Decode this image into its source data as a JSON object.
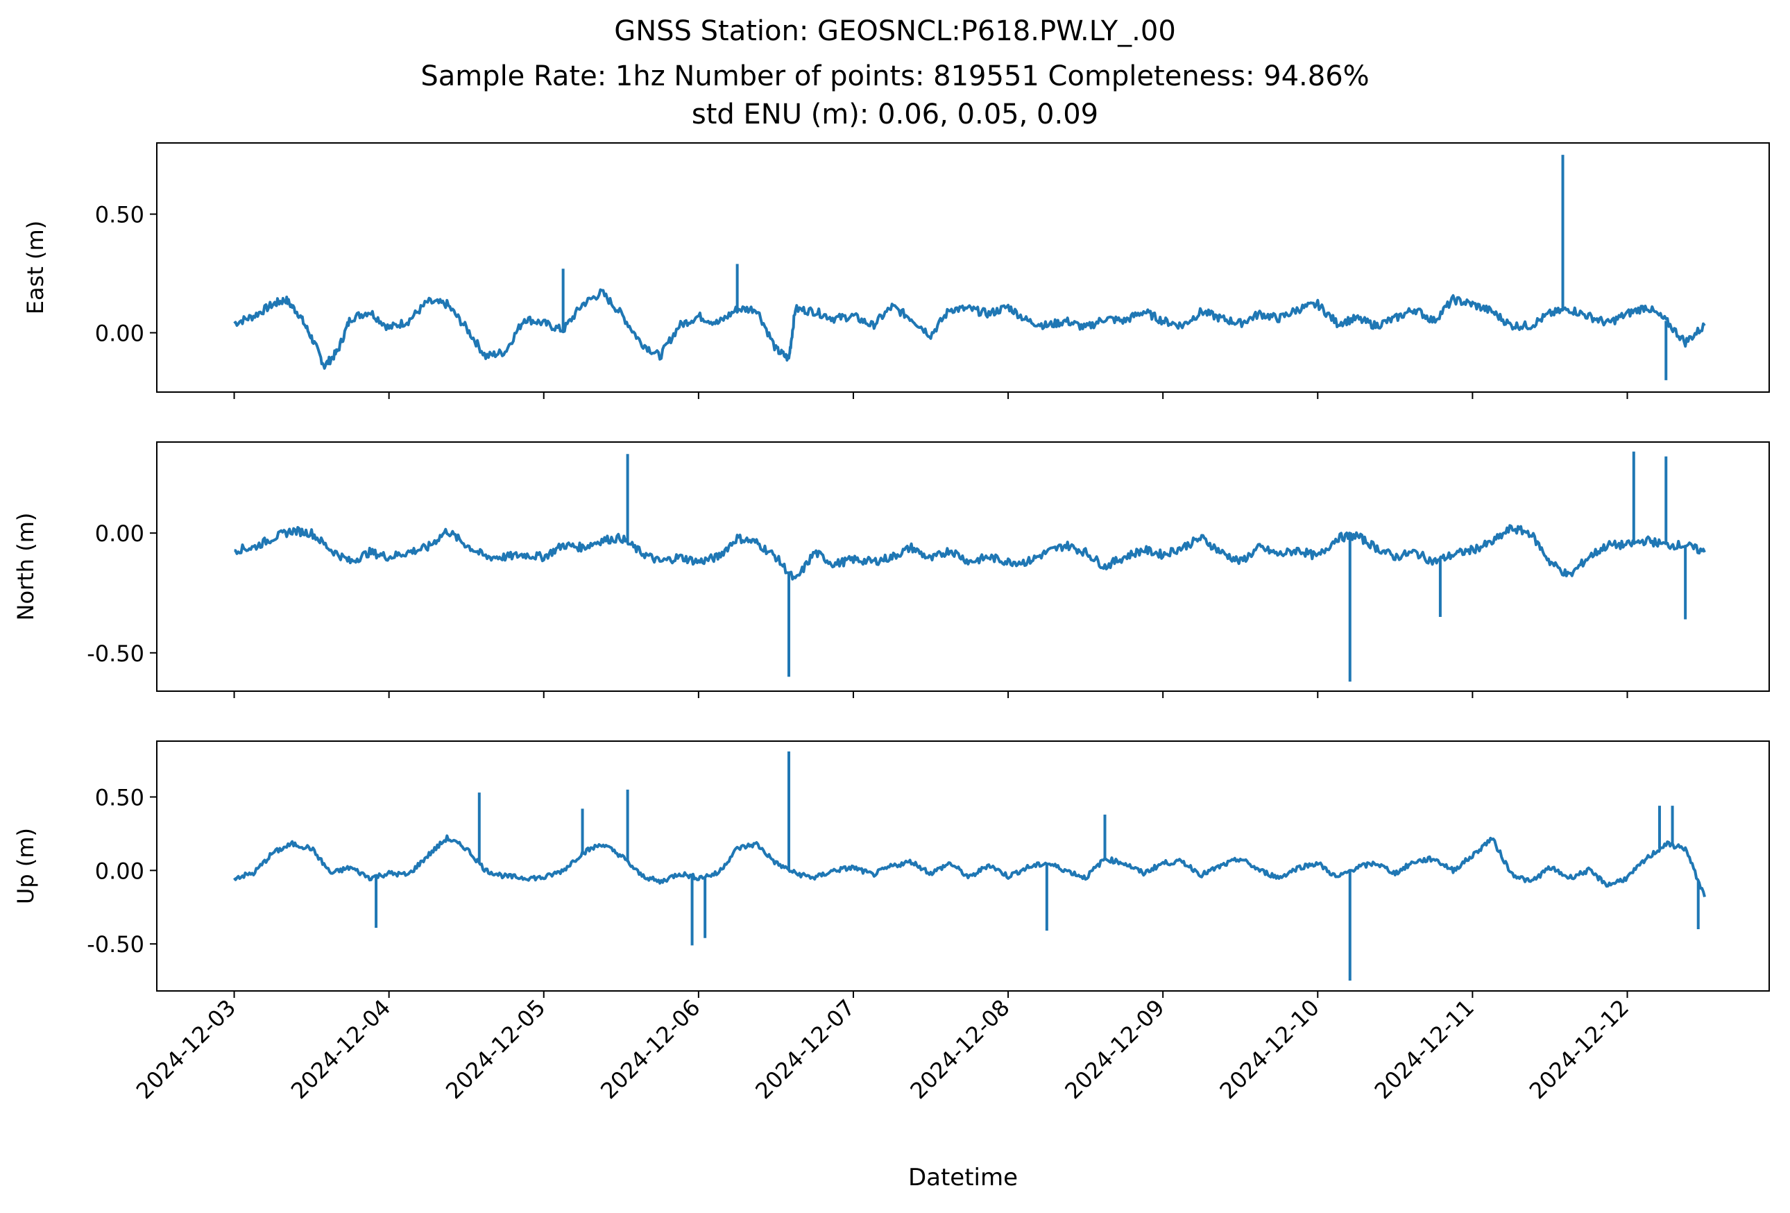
{
  "title_lines": [
    "GNSS Station: GEOSNCL:P618.PW.LY_.00",
    "Sample Rate: 1hz   Number of points: 819551    Completeness:  94.86%",
    "std ENU (m):  0.06, 0.05, 0.09"
  ],
  "xlabel": "Datetime",
  "line_color": "#1f77b4",
  "chart_data": [
    {
      "type": "line",
      "ylabel": "East (m)",
      "x_ticks": [
        "2024-12-03",
        "2024-12-04",
        "2024-12-05",
        "2024-12-06",
        "2024-12-07",
        "2024-12-08",
        "2024-12-09",
        "2024-12-10",
        "2024-12-11",
        "2024-12-12"
      ],
      "show_x_tick_labels": false,
      "y_ticks": [
        0.5,
        0.0
      ],
      "y_tick_labels": [
        "0.50",
        "0.00"
      ],
      "ylim": [
        -0.25,
        0.8
      ],
      "xlim": [
        "2024-12-02T12:00",
        "2024-12-12T22:00"
      ],
      "series": [
        {
          "x": [
            "2024-12-03T00:00",
            "2024-12-03T03:00",
            "2024-12-03T06:00",
            "2024-12-03T08:00",
            "2024-12-03T10:00",
            "2024-12-03T12:00",
            "2024-12-03T14:00",
            "2024-12-03T16:00",
            "2024-12-03T18:00",
            "2024-12-03T21:00",
            "2024-12-04T00:00",
            "2024-12-04T03:00",
            "2024-12-04T06:00",
            "2024-12-04T09:00",
            "2024-12-04T12:00",
            "2024-12-04T15:00",
            "2024-12-04T18:00",
            "2024-12-04T21:00",
            "2024-12-05T00:00",
            "2024-12-05T03:00",
            "2024-12-05T06:00",
            "2024-12-05T09:00",
            "2024-12-05T12:00",
            "2024-12-05T15:00",
            "2024-12-05T18:00",
            "2024-12-05T21:00",
            "2024-12-06T00:00",
            "2024-12-06T03:00",
            "2024-12-06T06:00",
            "2024-12-06T09:00",
            "2024-12-06T12:00",
            "2024-12-06T14:00",
            "2024-12-06T15:00",
            "2024-12-06T18:00",
            "2024-12-06T21:00",
            "2024-12-07T00:00",
            "2024-12-07T03:00",
            "2024-12-07T06:00",
            "2024-12-07T09:00",
            "2024-12-07T12:00",
            "2024-12-07T15:00",
            "2024-12-07T18:00",
            "2024-12-07T21:00",
            "2024-12-08T00:00",
            "2024-12-08T03:00",
            "2024-12-08T06:00",
            "2024-12-08T09:00",
            "2024-12-08T12:00",
            "2024-12-08T15:00",
            "2024-12-08T18:00",
            "2024-12-08T21:00",
            "2024-12-09T00:00",
            "2024-12-09T03:00",
            "2024-12-09T06:00",
            "2024-12-09T09:00",
            "2024-12-09T12:00",
            "2024-12-09T15:00",
            "2024-12-09T18:00",
            "2024-12-09T21:00",
            "2024-12-10T00:00",
            "2024-12-10T03:00",
            "2024-12-10T06:00",
            "2024-12-10T09:00",
            "2024-12-10T12:00",
            "2024-12-10T15:00",
            "2024-12-10T18:00",
            "2024-12-10T21:00",
            "2024-12-11T00:00",
            "2024-12-11T03:00",
            "2024-12-11T06:00",
            "2024-12-11T09:00",
            "2024-12-11T12:00",
            "2024-12-11T15:00",
            "2024-12-11T18:00",
            "2024-12-11T21:00",
            "2024-12-12T00:00",
            "2024-12-12T03:00",
            "2024-12-12T06:00",
            "2024-12-12T09:00",
            "2024-12-12T12:00"
          ],
          "y": [
            0.04,
            0.07,
            0.12,
            0.14,
            0.08,
            -0.02,
            -0.14,
            -0.08,
            0.06,
            0.09,
            0.02,
            0.05,
            0.13,
            0.12,
            0.02,
            -0.1,
            -0.08,
            0.06,
            0.04,
            0.01,
            0.12,
            0.17,
            0.08,
            -0.04,
            -0.1,
            0.03,
            0.07,
            0.04,
            0.1,
            0.1,
            -0.07,
            -0.11,
            0.1,
            0.09,
            0.06,
            0.07,
            0.03,
            0.11,
            0.06,
            -0.01,
            0.1,
            0.1,
            0.08,
            0.11,
            0.05,
            0.03,
            0.05,
            0.02,
            0.06,
            0.05,
            0.09,
            0.05,
            0.03,
            0.09,
            0.06,
            0.04,
            0.08,
            0.06,
            0.1,
            0.12,
            0.04,
            0.06,
            0.03,
            0.06,
            0.1,
            0.05,
            0.14,
            0.12,
            0.09,
            0.03,
            0.03,
            0.08,
            0.1,
            0.07,
            0.04,
            0.08,
            0.11,
            0.05,
            -0.04,
            0.03
          ]
        }
      ],
      "spikes": [
        {
          "x": "2024-12-11T14:00",
          "y": 0.75
        },
        {
          "x": "2024-12-06T06:00",
          "y": 0.29
        },
        {
          "x": "2024-12-05T03:00",
          "y": 0.27
        },
        {
          "x": "2024-12-12T06:00",
          "y": -0.2
        }
      ]
    },
    {
      "type": "line",
      "ylabel": "North (m)",
      "x_ticks": [
        "2024-12-03",
        "2024-12-04",
        "2024-12-05",
        "2024-12-06",
        "2024-12-07",
        "2024-12-08",
        "2024-12-09",
        "2024-12-10",
        "2024-12-11",
        "2024-12-12"
      ],
      "show_x_tick_labels": false,
      "y_ticks": [
        0.0,
        -0.5
      ],
      "y_tick_labels": [
        "0.00",
        "-0.50"
      ],
      "ylim": [
        -0.66,
        0.38
      ],
      "xlim": [
        "2024-12-02T12:00",
        "2024-12-12T22:00"
      ],
      "series": [
        {
          "x": [
            "2024-12-03T00:00",
            "2024-12-03T03:00",
            "2024-12-03T06:00",
            "2024-12-03T09:00",
            "2024-12-03T12:00",
            "2024-12-03T15:00",
            "2024-12-03T18:00",
            "2024-12-03T21:00",
            "2024-12-04T00:00",
            "2024-12-04T03:00",
            "2024-12-04T06:00",
            "2024-12-04T09:00",
            "2024-12-04T12:00",
            "2024-12-04T15:00",
            "2024-12-04T18:00",
            "2024-12-04T21:00",
            "2024-12-05T00:00",
            "2024-12-05T03:00",
            "2024-12-05T06:00",
            "2024-12-05T09:00",
            "2024-12-05T12:00",
            "2024-12-05T15:00",
            "2024-12-05T18:00",
            "2024-12-05T21:00",
            "2024-12-06T00:00",
            "2024-12-06T03:00",
            "2024-12-06T06:00",
            "2024-12-06T09:00",
            "2024-12-06T12:00",
            "2024-12-06T15:00",
            "2024-12-06T18:00",
            "2024-12-06T21:00",
            "2024-12-07T00:00",
            "2024-12-07T03:00",
            "2024-12-07T06:00",
            "2024-12-07T09:00",
            "2024-12-07T12:00",
            "2024-12-07T15:00",
            "2024-12-07T18:00",
            "2024-12-07T21:00",
            "2024-12-08T00:00",
            "2024-12-08T03:00",
            "2024-12-08T06:00",
            "2024-12-08T09:00",
            "2024-12-08T12:00",
            "2024-12-08T15:00",
            "2024-12-08T18:00",
            "2024-12-08T21:00",
            "2024-12-09T00:00",
            "2024-12-09T03:00",
            "2024-12-09T06:00",
            "2024-12-09T09:00",
            "2024-12-09T12:00",
            "2024-12-09T15:00",
            "2024-12-09T18:00",
            "2024-12-09T21:00",
            "2024-12-10T00:00",
            "2024-12-10T03:00",
            "2024-12-10T06:00",
            "2024-12-10T09:00",
            "2024-12-10T12:00",
            "2024-12-10T15:00",
            "2024-12-10T18:00",
            "2024-12-10T21:00",
            "2024-12-11T00:00",
            "2024-12-11T03:00",
            "2024-12-11T06:00",
            "2024-12-11T09:00",
            "2024-12-11T12:00",
            "2024-12-11T15:00",
            "2024-12-11T18:00",
            "2024-12-11T21:00",
            "2024-12-12T00:00",
            "2024-12-12T03:00",
            "2024-12-12T06:00",
            "2024-12-12T09:00",
            "2024-12-12T12:00"
          ],
          "y": [
            -0.07,
            -0.06,
            -0.02,
            0.01,
            0.0,
            -0.07,
            -0.12,
            -0.08,
            -0.1,
            -0.08,
            -0.06,
            0.01,
            -0.05,
            -0.1,
            -0.1,
            -0.09,
            -0.1,
            -0.05,
            -0.06,
            -0.03,
            -0.02,
            -0.08,
            -0.12,
            -0.1,
            -0.12,
            -0.1,
            -0.02,
            -0.04,
            -0.1,
            -0.2,
            -0.08,
            -0.13,
            -0.11,
            -0.12,
            -0.1,
            -0.06,
            -0.11,
            -0.07,
            -0.12,
            -0.1,
            -0.12,
            -0.12,
            -0.08,
            -0.05,
            -0.08,
            -0.14,
            -0.1,
            -0.07,
            -0.09,
            -0.06,
            -0.02,
            -0.08,
            -0.12,
            -0.06,
            -0.09,
            -0.07,
            -0.1,
            -0.02,
            -0.01,
            -0.06,
            -0.1,
            -0.08,
            -0.12,
            -0.09,
            -0.07,
            -0.04,
            0.02,
            0.0,
            -0.12,
            -0.18,
            -0.1,
            -0.05,
            -0.05,
            -0.03,
            -0.05,
            -0.05,
            -0.08
          ]
        }
      ],
      "spikes": [
        {
          "x": "2024-12-05T13:00",
          "y": 0.33
        },
        {
          "x": "2024-12-12T01:00",
          "y": 0.34
        },
        {
          "x": "2024-12-12T06:00",
          "y": 0.32
        },
        {
          "x": "2024-12-06T14:00",
          "y": -0.6
        },
        {
          "x": "2024-12-10T05:00",
          "y": -0.62
        },
        {
          "x": "2024-12-10T19:00",
          "y": -0.35
        },
        {
          "x": "2024-12-12T09:00",
          "y": -0.36
        }
      ]
    },
    {
      "type": "line",
      "ylabel": "Up (m)",
      "x_ticks": [
        "2024-12-03",
        "2024-12-04",
        "2024-12-05",
        "2024-12-06",
        "2024-12-07",
        "2024-12-08",
        "2024-12-09",
        "2024-12-10",
        "2024-12-11",
        "2024-12-12"
      ],
      "show_x_tick_labels": true,
      "y_ticks": [
        0.5,
        0.0,
        -0.5
      ],
      "y_tick_labels": [
        "0.50",
        "0.00",
        "-0.50"
      ],
      "ylim": [
        -0.82,
        0.88
      ],
      "xlim": [
        "2024-12-02T12:00",
        "2024-12-12T22:00"
      ],
      "series": [
        {
          "x": [
            "2024-12-03T00:00",
            "2024-12-03T03:00",
            "2024-12-03T06:00",
            "2024-12-03T09:00",
            "2024-12-03T12:00",
            "2024-12-03T15:00",
            "2024-12-03T18:00",
            "2024-12-03T21:00",
            "2024-12-04T00:00",
            "2024-12-04T03:00",
            "2024-12-04T06:00",
            "2024-12-04T09:00",
            "2024-12-04T12:00",
            "2024-12-04T15:00",
            "2024-12-04T18:00",
            "2024-12-04T21:00",
            "2024-12-05T00:00",
            "2024-12-05T03:00",
            "2024-12-05T06:00",
            "2024-12-05T09:00",
            "2024-12-05T12:00",
            "2024-12-05T15:00",
            "2024-12-05T18:00",
            "2024-12-05T21:00",
            "2024-12-06T00:00",
            "2024-12-06T03:00",
            "2024-12-06T06:00",
            "2024-12-06T09:00",
            "2024-12-06T12:00",
            "2024-12-06T15:00",
            "2024-12-06T18:00",
            "2024-12-06T21:00",
            "2024-12-07T00:00",
            "2024-12-07T03:00",
            "2024-12-07T06:00",
            "2024-12-07T09:00",
            "2024-12-07T12:00",
            "2024-12-07T15:00",
            "2024-12-07T18:00",
            "2024-12-07T21:00",
            "2024-12-08T00:00",
            "2024-12-08T03:00",
            "2024-12-08T06:00",
            "2024-12-08T09:00",
            "2024-12-08T12:00",
            "2024-12-08T15:00",
            "2024-12-08T18:00",
            "2024-12-08T21:00",
            "2024-12-09T00:00",
            "2024-12-09T03:00",
            "2024-12-09T06:00",
            "2024-12-09T09:00",
            "2024-12-09T12:00",
            "2024-12-09T15:00",
            "2024-12-09T18:00",
            "2024-12-09T21:00",
            "2024-12-10T00:00",
            "2024-12-10T03:00",
            "2024-12-10T06:00",
            "2024-12-10T09:00",
            "2024-12-10T12:00",
            "2024-12-10T15:00",
            "2024-12-10T18:00",
            "2024-12-10T21:00",
            "2024-12-11T00:00",
            "2024-12-11T03:00",
            "2024-12-11T06:00",
            "2024-12-11T09:00",
            "2024-12-11T12:00",
            "2024-12-11T15:00",
            "2024-12-11T18:00",
            "2024-12-11T21:00",
            "2024-12-12T00:00",
            "2024-12-12T03:00",
            "2024-12-12T06:00",
            "2024-12-12T09:00",
            "2024-12-12T12:00"
          ],
          "y": [
            -0.05,
            -0.02,
            0.12,
            0.18,
            0.15,
            -0.02,
            0.02,
            -0.05,
            -0.02,
            -0.03,
            0.1,
            0.22,
            0.15,
            0.0,
            -0.04,
            -0.05,
            -0.05,
            0.0,
            0.12,
            0.18,
            0.1,
            -0.03,
            -0.08,
            -0.02,
            -0.05,
            -0.02,
            0.15,
            0.18,
            0.05,
            -0.02,
            -0.05,
            0.0,
            0.02,
            -0.03,
            0.03,
            0.06,
            -0.02,
            0.05,
            -0.05,
            0.04,
            -0.04,
            0.02,
            0.05,
            0.0,
            -0.05,
            0.08,
            0.05,
            -0.02,
            0.05,
            0.06,
            -0.03,
            0.03,
            0.08,
            0.0,
            -0.05,
            0.02,
            0.05,
            -0.05,
            0.02,
            0.05,
            -0.02,
            0.06,
            0.08,
            0.0,
            0.1,
            0.22,
            -0.02,
            -0.08,
            0.02,
            -0.05,
            0.0,
            -0.1,
            -0.05,
            0.08,
            0.18,
            0.15,
            -0.18
          ]
        }
      ],
      "spikes": [
        {
          "x": "2024-12-06T14:00",
          "y": 0.81
        },
        {
          "x": "2024-12-04T14:00",
          "y": 0.53
        },
        {
          "x": "2024-12-05T13:00",
          "y": 0.55
        },
        {
          "x": "2024-12-05T06:00",
          "y": 0.42
        },
        {
          "x": "2024-12-08T15:00",
          "y": 0.38
        },
        {
          "x": "2024-12-12T05:00",
          "y": 0.44
        },
        {
          "x": "2024-12-12T07:00",
          "y": 0.44
        },
        {
          "x": "2024-12-10T05:00",
          "y": -0.75
        },
        {
          "x": "2024-12-05T23:00",
          "y": -0.51
        },
        {
          "x": "2024-12-06T01:00",
          "y": -0.46
        },
        {
          "x": "2024-12-03T22:00",
          "y": -0.39
        },
        {
          "x": "2024-12-08T06:00",
          "y": -0.41
        },
        {
          "x": "2024-12-12T11:00",
          "y": -0.4
        }
      ]
    }
  ]
}
